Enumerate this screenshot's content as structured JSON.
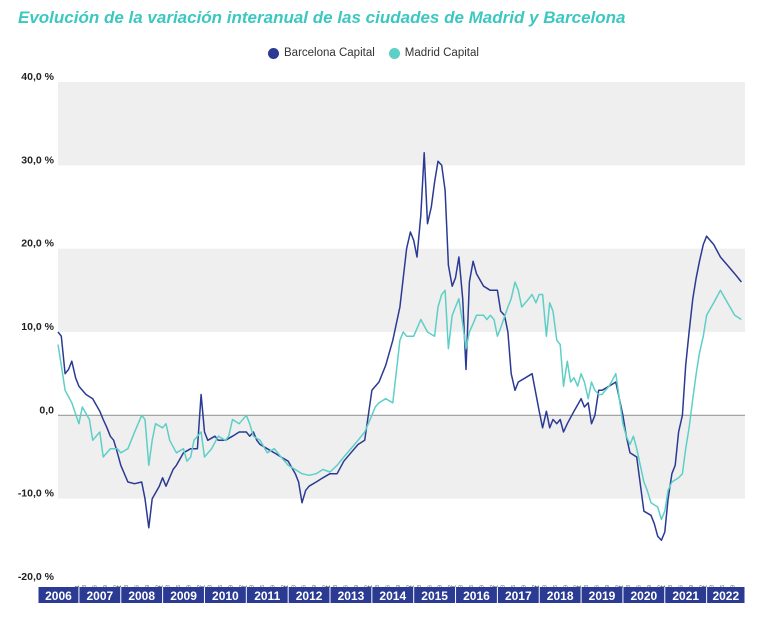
{
  "title": "Evolución de la variación interanual de las ciudades de Madrid y Barcelona",
  "colors": {
    "barcelona": "#2b3a93",
    "madrid": "#5ecfc6",
    "band": "#efefef",
    "year_bar": "#2b3a93",
    "zero_line": "#9a9a9a"
  },
  "chart_data": {
    "type": "line",
    "title": "Evolución de la variación interanual de las ciudades de Madrid y Barcelona",
    "xlabel": "",
    "ylabel": "",
    "ylim": [
      -20,
      40
    ],
    "y_ticks": [
      {
        "value": 40,
        "label": "40,0 %"
      },
      {
        "value": 30,
        "label": "30,0 %"
      },
      {
        "value": 20,
        "label": "20,0 %"
      },
      {
        "value": 10,
        "label": "10,0 %"
      },
      {
        "value": 0,
        "label": "0,0"
      },
      {
        "value": -10,
        "label": "-10,0 %"
      },
      {
        "value": -20,
        "label": "-20,0 %"
      }
    ],
    "xlim": [
      2006.5,
      2022.917
    ],
    "years": [
      "2006",
      "2007",
      "2008",
      "2009",
      "2010",
      "2011",
      "2012",
      "2013",
      "2014",
      "2015",
      "2016",
      "2017",
      "2018",
      "2019",
      "2020",
      "2021",
      "2022"
    ],
    "legend_position": "top-center",
    "grid": "alternating horizontal bands",
    "series": [
      {
        "name": "Barcelona Capital",
        "color": "#2b3a93",
        "points": [
          [
            2006.5,
            10
          ],
          [
            2006.58,
            9.5
          ],
          [
            2006.67,
            5
          ],
          [
            2006.75,
            5.5
          ],
          [
            2006.83,
            6.5
          ],
          [
            2006.92,
            4.5
          ],
          [
            2007.0,
            3.5
          ],
          [
            2007.17,
            2.5
          ],
          [
            2007.33,
            2
          ],
          [
            2007.5,
            0.5
          ],
          [
            2007.58,
            -0.5
          ],
          [
            2007.67,
            -1.5
          ],
          [
            2007.75,
            -2.5
          ],
          [
            2007.83,
            -3
          ],
          [
            2007.92,
            -4.5
          ],
          [
            2008.0,
            -6
          ],
          [
            2008.17,
            -8
          ],
          [
            2008.33,
            -8.2
          ],
          [
            2008.5,
            -8
          ],
          [
            2008.58,
            -10
          ],
          [
            2008.67,
            -13.5
          ],
          [
            2008.75,
            -10
          ],
          [
            2008.92,
            -8.5
          ],
          [
            2009.0,
            -7.5
          ],
          [
            2009.08,
            -8.5
          ],
          [
            2009.25,
            -6.5
          ],
          [
            2009.33,
            -6
          ],
          [
            2009.5,
            -4.5
          ],
          [
            2009.67,
            -4
          ],
          [
            2009.83,
            -4
          ],
          [
            2009.92,
            2.5
          ],
          [
            2010.0,
            -2
          ],
          [
            2010.08,
            -3
          ],
          [
            2010.25,
            -2.5
          ],
          [
            2010.33,
            -3
          ],
          [
            2010.5,
            -3
          ],
          [
            2010.67,
            -2.5
          ],
          [
            2010.83,
            -2
          ],
          [
            2011.0,
            -2
          ],
          [
            2011.08,
            -2.5
          ],
          [
            2011.17,
            -2
          ],
          [
            2011.25,
            -3
          ],
          [
            2011.33,
            -3.5
          ],
          [
            2011.5,
            -4
          ],
          [
            2011.67,
            -4.5
          ],
          [
            2011.83,
            -5
          ],
          [
            2012.0,
            -5.5
          ],
          [
            2012.17,
            -7
          ],
          [
            2012.25,
            -8
          ],
          [
            2012.33,
            -10.5
          ],
          [
            2012.42,
            -9
          ],
          [
            2012.5,
            -8.5
          ],
          [
            2012.67,
            -8
          ],
          [
            2012.83,
            -7.5
          ],
          [
            2013.0,
            -7
          ],
          [
            2013.17,
            -7
          ],
          [
            2013.33,
            -5.5
          ],
          [
            2013.5,
            -4.5
          ],
          [
            2013.67,
            -3.5
          ],
          [
            2013.83,
            -3
          ],
          [
            2014.0,
            3
          ],
          [
            2014.17,
            4
          ],
          [
            2014.33,
            6
          ],
          [
            2014.5,
            9
          ],
          [
            2014.67,
            13
          ],
          [
            2014.83,
            20
          ],
          [
            2014.92,
            22
          ],
          [
            2015.0,
            21
          ],
          [
            2015.08,
            19
          ],
          [
            2015.17,
            24
          ],
          [
            2015.25,
            31.5
          ],
          [
            2015.33,
            23
          ],
          [
            2015.42,
            25
          ],
          [
            2015.5,
            28
          ],
          [
            2015.58,
            30.5
          ],
          [
            2015.67,
            30
          ],
          [
            2015.75,
            27
          ],
          [
            2015.83,
            18
          ],
          [
            2015.92,
            15.5
          ],
          [
            2016.0,
            16.5
          ],
          [
            2016.08,
            19
          ],
          [
            2016.17,
            14
          ],
          [
            2016.25,
            5.5
          ],
          [
            2016.33,
            16
          ],
          [
            2016.42,
            18.5
          ],
          [
            2016.5,
            17
          ],
          [
            2016.67,
            15.5
          ],
          [
            2016.83,
            15
          ],
          [
            2017.0,
            15
          ],
          [
            2017.08,
            12.5
          ],
          [
            2017.17,
            12
          ],
          [
            2017.25,
            10
          ],
          [
            2017.33,
            5
          ],
          [
            2017.42,
            3
          ],
          [
            2017.5,
            4
          ],
          [
            2017.67,
            4.5
          ],
          [
            2017.83,
            5
          ],
          [
            2018.0,
            0.5
          ],
          [
            2018.08,
            -1.5
          ],
          [
            2018.17,
            0.5
          ],
          [
            2018.25,
            -1.5
          ],
          [
            2018.33,
            -0.5
          ],
          [
            2018.42,
            -1
          ],
          [
            2018.5,
            -0.5
          ],
          [
            2018.58,
            -2
          ],
          [
            2018.67,
            -1
          ],
          [
            2018.83,
            0.5
          ],
          [
            2019.0,
            2
          ],
          [
            2019.08,
            1
          ],
          [
            2019.17,
            1.5
          ],
          [
            2019.25,
            -1
          ],
          [
            2019.33,
            0
          ],
          [
            2019.42,
            3
          ],
          [
            2019.5,
            3
          ],
          [
            2019.67,
            3.5
          ],
          [
            2019.83,
            4
          ],
          [
            2020.0,
            0
          ],
          [
            2020.08,
            -2.5
          ],
          [
            2020.17,
            -4.5
          ],
          [
            2020.33,
            -5
          ],
          [
            2020.5,
            -11.5
          ],
          [
            2020.67,
            -12
          ],
          [
            2020.75,
            -13
          ],
          [
            2020.83,
            -14.5
          ],
          [
            2020.92,
            -15
          ],
          [
            2021.0,
            -14
          ],
          [
            2021.08,
            -10
          ],
          [
            2021.17,
            -7
          ],
          [
            2021.25,
            -6
          ],
          [
            2021.33,
            -2
          ],
          [
            2021.42,
            0
          ],
          [
            2021.5,
            6
          ],
          [
            2021.58,
            10
          ],
          [
            2021.67,
            14
          ],
          [
            2021.75,
            16.5
          ],
          [
            2021.83,
            18.5
          ],
          [
            2021.92,
            20.5
          ],
          [
            2022.0,
            21.5
          ],
          [
            2022.17,
            20.5
          ],
          [
            2022.33,
            19
          ],
          [
            2022.5,
            18
          ],
          [
            2022.67,
            17
          ],
          [
            2022.83,
            16
          ]
        ]
      },
      {
        "name": "Madrid Capital",
        "color": "#5ecfc6",
        "points": [
          [
            2006.5,
            8.5
          ],
          [
            2006.58,
            6
          ],
          [
            2006.67,
            3
          ],
          [
            2006.83,
            1.5
          ],
          [
            2007.0,
            -1
          ],
          [
            2007.08,
            1
          ],
          [
            2007.25,
            -0.5
          ],
          [
            2007.33,
            -3
          ],
          [
            2007.5,
            -2
          ],
          [
            2007.58,
            -5
          ],
          [
            2007.75,
            -4
          ],
          [
            2007.92,
            -4
          ],
          [
            2008.0,
            -4.5
          ],
          [
            2008.17,
            -4
          ],
          [
            2008.33,
            -2
          ],
          [
            2008.5,
            0
          ],
          [
            2008.58,
            -0.5
          ],
          [
            2008.67,
            -6
          ],
          [
            2008.75,
            -3
          ],
          [
            2008.83,
            -1
          ],
          [
            2009.0,
            -1.5
          ],
          [
            2009.08,
            -1
          ],
          [
            2009.17,
            -3
          ],
          [
            2009.33,
            -4.5
          ],
          [
            2009.5,
            -4
          ],
          [
            2009.58,
            -5.5
          ],
          [
            2009.67,
            -5
          ],
          [
            2009.75,
            -3
          ],
          [
            2009.92,
            -2
          ],
          [
            2010.0,
            -5
          ],
          [
            2010.17,
            -4
          ],
          [
            2010.33,
            -2.5
          ],
          [
            2010.5,
            -3
          ],
          [
            2010.58,
            -2.5
          ],
          [
            2010.67,
            -0.5
          ],
          [
            2010.83,
            -1
          ],
          [
            2011.0,
            0
          ],
          [
            2011.08,
            -1
          ],
          [
            2011.17,
            -2.5
          ],
          [
            2011.33,
            -3
          ],
          [
            2011.5,
            -4.5
          ],
          [
            2011.67,
            -4
          ],
          [
            2011.83,
            -5
          ],
          [
            2012.0,
            -6
          ],
          [
            2012.17,
            -6.5
          ],
          [
            2012.33,
            -7
          ],
          [
            2012.5,
            -7.2
          ],
          [
            2012.67,
            -7
          ],
          [
            2012.83,
            -6.5
          ],
          [
            2013.0,
            -6.8
          ],
          [
            2013.17,
            -6
          ],
          [
            2013.33,
            -5
          ],
          [
            2013.5,
            -4
          ],
          [
            2013.67,
            -3
          ],
          [
            2013.83,
            -2
          ],
          [
            2014.0,
            0
          ],
          [
            2014.08,
            1
          ],
          [
            2014.17,
            1.5
          ],
          [
            2014.33,
            2
          ],
          [
            2014.5,
            1.5
          ],
          [
            2014.67,
            9
          ],
          [
            2014.75,
            10
          ],
          [
            2014.83,
            9.5
          ],
          [
            2015.0,
            9.5
          ],
          [
            2015.17,
            11.5
          ],
          [
            2015.33,
            10
          ],
          [
            2015.5,
            9.5
          ],
          [
            2015.58,
            13
          ],
          [
            2015.67,
            14.5
          ],
          [
            2015.75,
            15
          ],
          [
            2015.83,
            8
          ],
          [
            2015.92,
            12
          ],
          [
            2016.0,
            13
          ],
          [
            2016.08,
            14
          ],
          [
            2016.17,
            11
          ],
          [
            2016.25,
            8
          ],
          [
            2016.33,
            10
          ],
          [
            2016.42,
            11
          ],
          [
            2016.5,
            12
          ],
          [
            2016.67,
            12
          ],
          [
            2016.75,
            11.5
          ],
          [
            2016.83,
            12
          ],
          [
            2016.92,
            11.5
          ],
          [
            2017.0,
            9.5
          ],
          [
            2017.08,
            10.5
          ],
          [
            2017.25,
            13
          ],
          [
            2017.33,
            14
          ],
          [
            2017.42,
            16
          ],
          [
            2017.5,
            15
          ],
          [
            2017.58,
            13
          ],
          [
            2017.75,
            14
          ],
          [
            2017.83,
            14.5
          ],
          [
            2017.92,
            13.5
          ],
          [
            2018.0,
            14.5
          ],
          [
            2018.08,
            14.5
          ],
          [
            2018.17,
            9.5
          ],
          [
            2018.25,
            13.5
          ],
          [
            2018.33,
            12.5
          ],
          [
            2018.42,
            9
          ],
          [
            2018.5,
            8.5
          ],
          [
            2018.58,
            3.5
          ],
          [
            2018.67,
            6.5
          ],
          [
            2018.75,
            4
          ],
          [
            2018.83,
            4.5
          ],
          [
            2018.92,
            3.5
          ],
          [
            2019.0,
            5
          ],
          [
            2019.08,
            4
          ],
          [
            2019.17,
            2
          ],
          [
            2019.25,
            4
          ],
          [
            2019.33,
            3
          ],
          [
            2019.42,
            2.5
          ],
          [
            2019.5,
            2.5
          ],
          [
            2019.58,
            3
          ],
          [
            2019.67,
            3.5
          ],
          [
            2019.83,
            5
          ],
          [
            2020.0,
            -1
          ],
          [
            2020.08,
            -2.5
          ],
          [
            2020.17,
            -3.5
          ],
          [
            2020.25,
            -2.5
          ],
          [
            2020.33,
            -4
          ],
          [
            2020.5,
            -8
          ],
          [
            2020.58,
            -9
          ],
          [
            2020.67,
            -10.5
          ],
          [
            2020.83,
            -11
          ],
          [
            2020.92,
            -12.5
          ],
          [
            2021.0,
            -11.5
          ],
          [
            2021.08,
            -9
          ],
          [
            2021.17,
            -8
          ],
          [
            2021.33,
            -7.5
          ],
          [
            2021.42,
            -7
          ],
          [
            2021.5,
            -4
          ],
          [
            2021.58,
            -1.5
          ],
          [
            2021.67,
            2
          ],
          [
            2021.75,
            5
          ],
          [
            2021.83,
            7.5
          ],
          [
            2021.92,
            9.5
          ],
          [
            2022.0,
            12
          ],
          [
            2022.17,
            13.5
          ],
          [
            2022.33,
            15
          ],
          [
            2022.5,
            13.5
          ],
          [
            2022.67,
            12
          ],
          [
            2022.83,
            11.5
          ]
        ]
      }
    ]
  }
}
